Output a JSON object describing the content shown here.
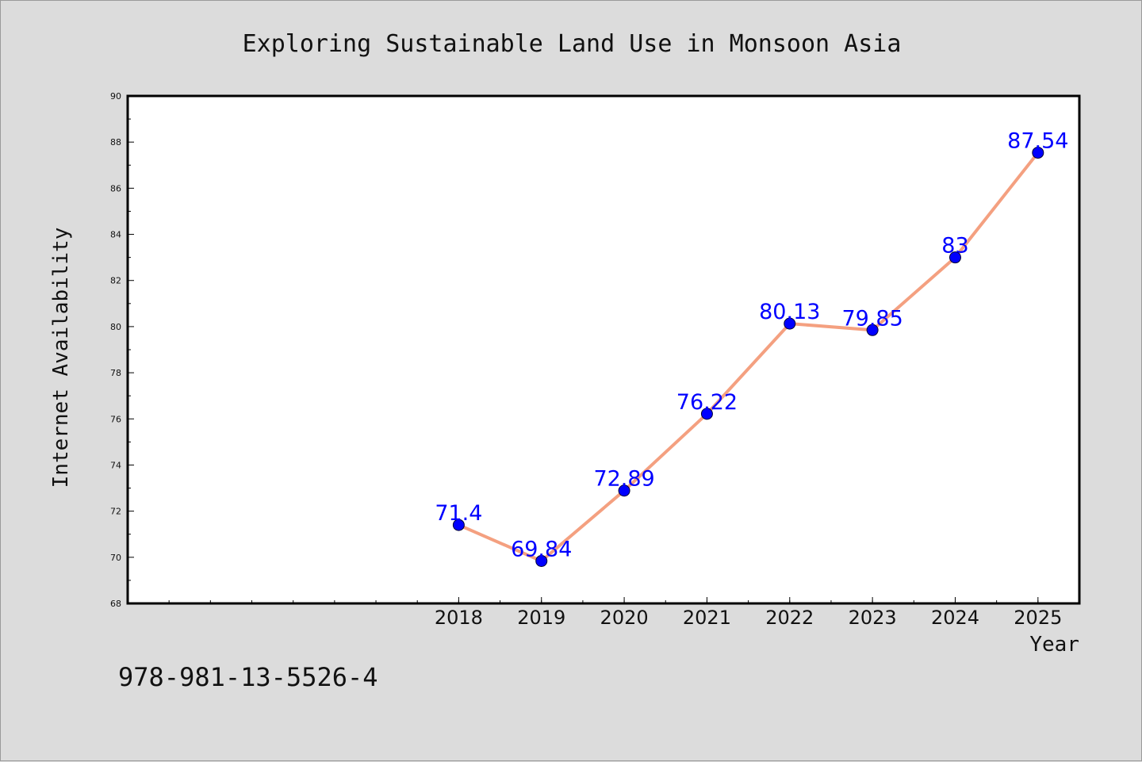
{
  "chart_data": {
    "type": "line",
    "title": "Exploring Sustainable Land Use in Monsoon Asia",
    "xlabel": "Year",
    "ylabel": "Internet Availability",
    "x": [
      2018,
      2019,
      2020,
      2021,
      2022,
      2023,
      2024,
      2025
    ],
    "xticks": [
      "2018",
      "2019",
      "2020",
      "2021",
      "2022",
      "2023",
      "2024",
      "2025"
    ],
    "xlim": [
      2014,
      2025.5
    ],
    "yticks": [
      "68",
      "70",
      "72",
      "74",
      "76",
      "78",
      "80",
      "82",
      "84",
      "86",
      "88",
      "90"
    ],
    "ylim": [
      68,
      90
    ],
    "grid": false,
    "series": [
      {
        "values": [
          71.4,
          69.84,
          72.89,
          76.22,
          80.13,
          79.85,
          83,
          87.54
        ],
        "labels": [
          "71.4",
          "69.84",
          "72.89",
          "76.22",
          "80.13",
          "79.85",
          "83",
          "87.54"
        ],
        "line_color": "#f4a080",
        "marker_color": "#0000ff",
        "label_color": "#0000ff"
      }
    ]
  },
  "footnote": "978-981-13-5526-4",
  "colors": {
    "background": "#dcdcdc",
    "plot_area": "#ffffff"
  }
}
